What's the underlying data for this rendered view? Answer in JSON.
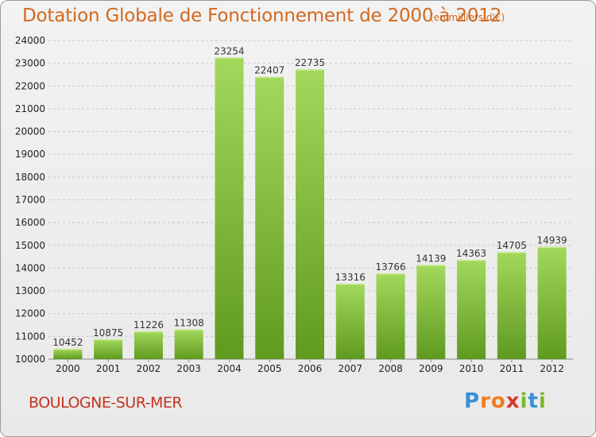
{
  "title": "Dotation Globale de Fonctionnement de 2000 à 2012",
  "subtitle": "(en milliers d'€)",
  "city": "BOULOGNE-SUR-MER",
  "logo": {
    "text": "Proxiti",
    "letters": [
      "P",
      "r",
      "o",
      "x",
      "i",
      "t",
      "i"
    ],
    "colors": [
      "#3a8fd6",
      "#f07b1f",
      "#f07b1f",
      "#d63a2a",
      "#7cb82f",
      "#3a8fd6",
      "#7cb82f"
    ]
  },
  "colors": {
    "title": "#d2691e",
    "city": "#c5341f",
    "bar_light": "#9ed457",
    "bar_dark": "#5f9a1f"
  },
  "chart_data": {
    "type": "bar",
    "title": "Dotation Globale de Fonctionnement de 2000 à 2012",
    "unit": "(en milliers d'€)",
    "categories": [
      "2000",
      "2001",
      "2002",
      "2003",
      "2004",
      "2005",
      "2006",
      "2007",
      "2008",
      "2009",
      "2010",
      "2011",
      "2012"
    ],
    "values": [
      10452,
      10875,
      11226,
      11308,
      23254,
      22407,
      22735,
      13316,
      13766,
      14139,
      14363,
      14705,
      14939
    ],
    "ylim": [
      10000,
      24000
    ],
    "yticks": [
      10000,
      11000,
      12000,
      13000,
      14000,
      15000,
      16000,
      17000,
      18000,
      19000,
      20000,
      21000,
      22000,
      23000,
      24000
    ],
    "grid": true,
    "legend": "none"
  }
}
